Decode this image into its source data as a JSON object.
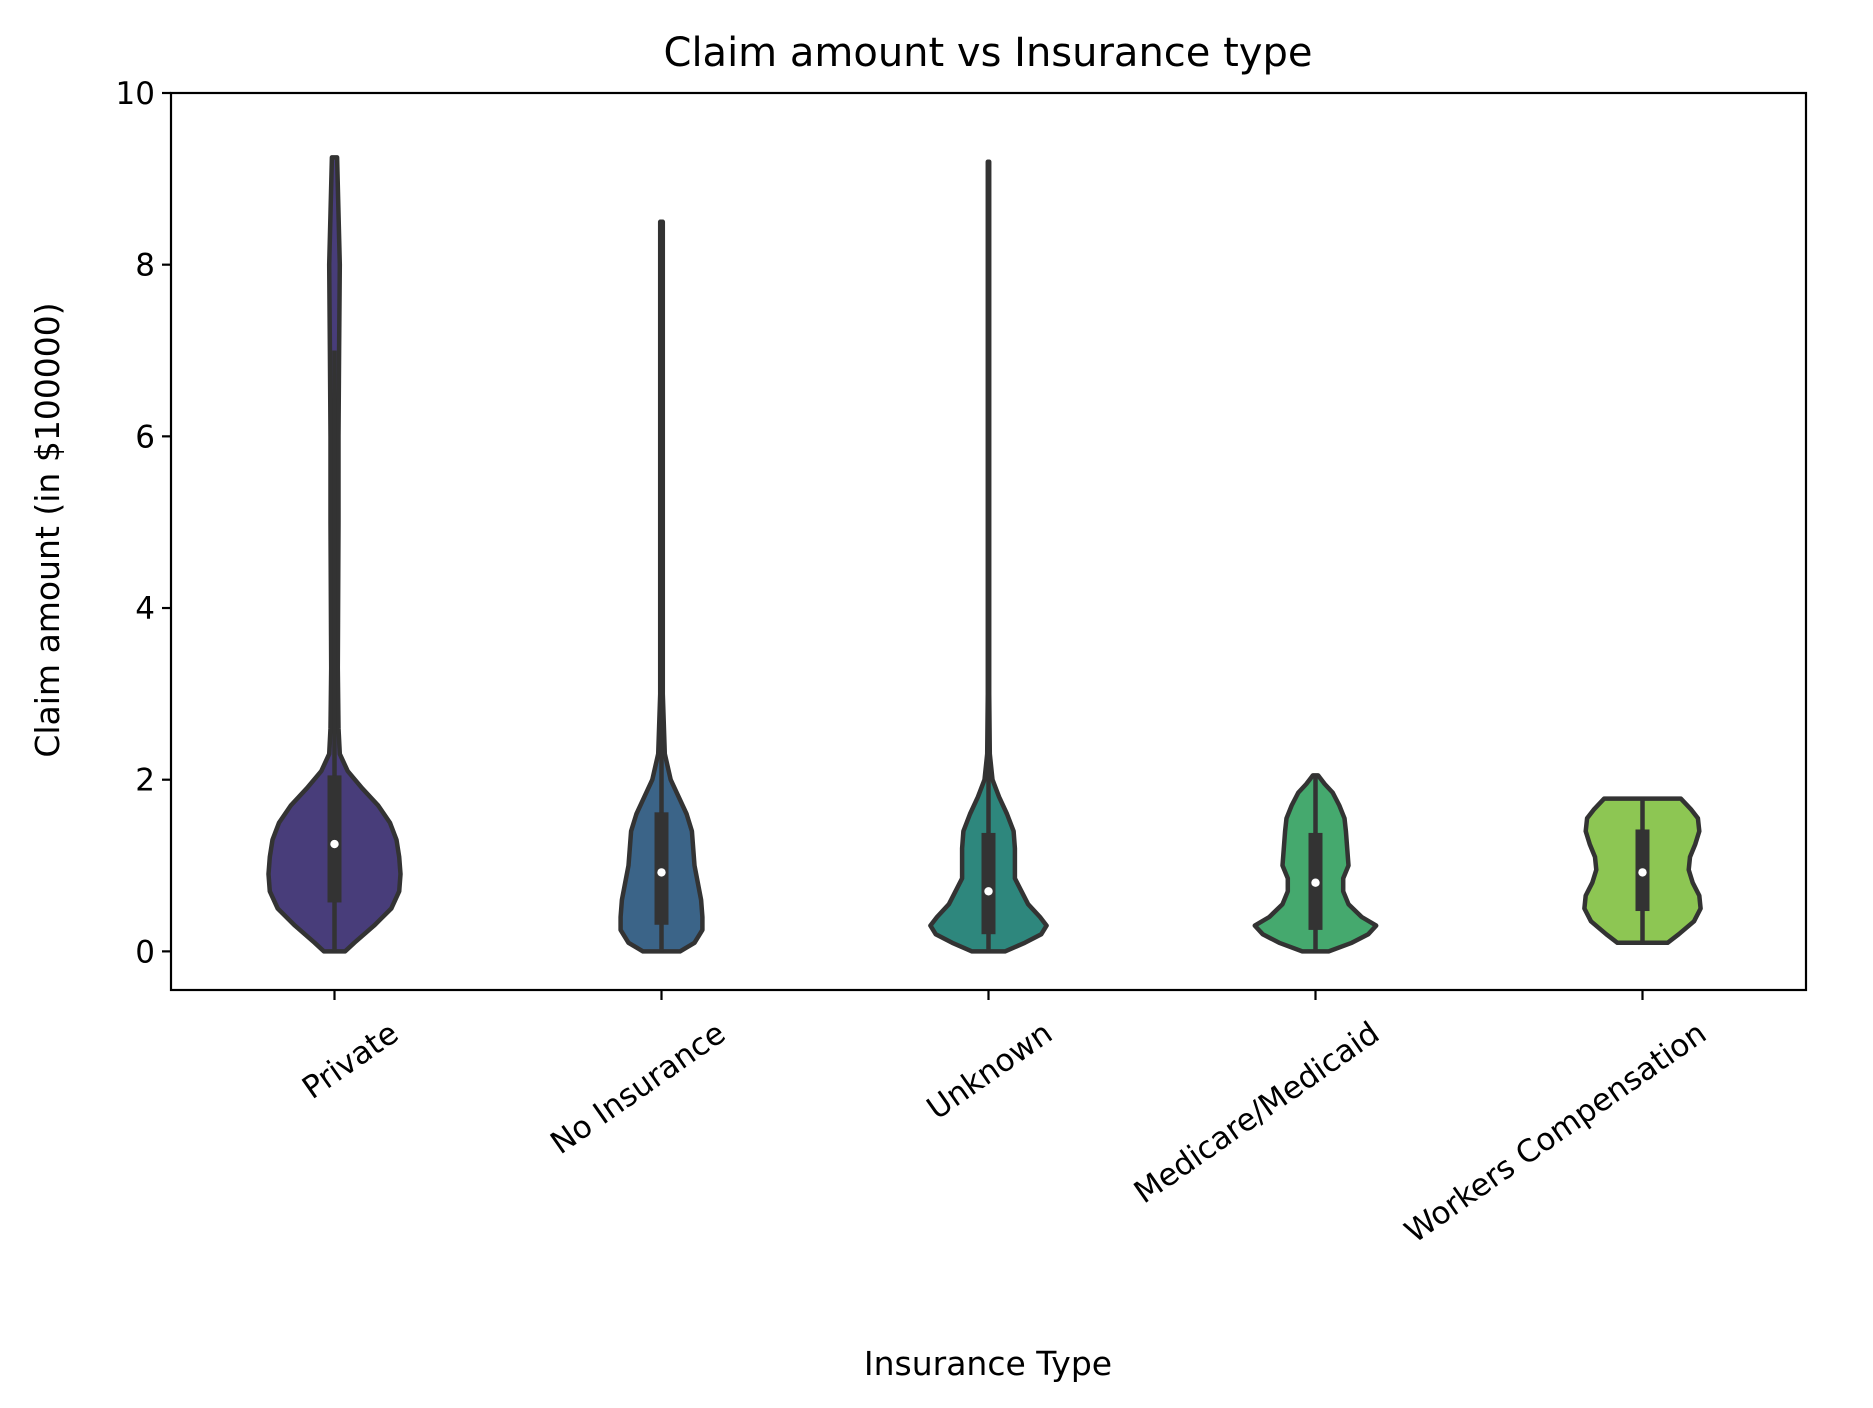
{
  "chart_data": {
    "type": "violin",
    "title": "Claim amount vs Insurance type",
    "xlabel": "Insurance Type",
    "ylabel": "Claim amount (in $100000)",
    "ylim": [
      -0.45,
      10
    ],
    "yticks": [
      0,
      2,
      4,
      6,
      8,
      10
    ],
    "grid": false,
    "categories": [
      "Private",
      "No Insurance",
      "Unknown",
      "Medicare/Medicaid",
      "Workers Compensation"
    ],
    "colors": [
      "#483d7a",
      "#3b6488",
      "#2e877d",
      "#45a96e",
      "#8dc653"
    ],
    "outline_color": "#333333",
    "violins": [
      {
        "name": "Private",
        "median": 1.25,
        "q1": 0.57,
        "q3": 2.05,
        "whisker_low": 0.0,
        "whisker_high": 7.0,
        "profile": [
          [
            0.0,
            0.16
          ],
          [
            0.1,
            0.3
          ],
          [
            0.3,
            0.6
          ],
          [
            0.5,
            0.86
          ],
          [
            0.7,
            0.98
          ],
          [
            0.9,
            1.0
          ],
          [
            1.1,
            0.98
          ],
          [
            1.3,
            0.94
          ],
          [
            1.5,
            0.84
          ],
          [
            1.7,
            0.66
          ],
          [
            1.9,
            0.42
          ],
          [
            2.1,
            0.2
          ],
          [
            2.3,
            0.08
          ],
          [
            2.6,
            0.06
          ],
          [
            3.3,
            0.05
          ],
          [
            5.0,
            0.06
          ],
          [
            6.0,
            0.06
          ],
          [
            7.0,
            0.07
          ],
          [
            8.0,
            0.08
          ],
          [
            8.6,
            0.06
          ],
          [
            9.25,
            0.04
          ]
        ]
      },
      {
        "name": "No Insurance",
        "median": 0.92,
        "q1": 0.31,
        "q3": 1.62,
        "whisker_low": 0.0,
        "whisker_high": 8.5,
        "profile": [
          [
            0.0,
            0.28
          ],
          [
            0.1,
            0.5
          ],
          [
            0.25,
            0.62
          ],
          [
            0.4,
            0.62
          ],
          [
            0.6,
            0.6
          ],
          [
            0.8,
            0.55
          ],
          [
            1.0,
            0.5
          ],
          [
            1.2,
            0.48
          ],
          [
            1.4,
            0.46
          ],
          [
            1.6,
            0.38
          ],
          [
            1.8,
            0.26
          ],
          [
            2.0,
            0.14
          ],
          [
            2.3,
            0.05
          ],
          [
            3.0,
            0.02
          ],
          [
            5.0,
            0.02
          ],
          [
            8.5,
            0.02
          ]
        ]
      },
      {
        "name": "Unknown",
        "median": 0.7,
        "q1": 0.2,
        "q3": 1.38,
        "whisker_low": 0.0,
        "whisker_high": 9.2,
        "profile": [
          [
            0.0,
            0.25
          ],
          [
            0.1,
            0.55
          ],
          [
            0.2,
            0.8
          ],
          [
            0.3,
            0.88
          ],
          [
            0.4,
            0.78
          ],
          [
            0.55,
            0.6
          ],
          [
            0.7,
            0.5
          ],
          [
            0.85,
            0.4
          ],
          [
            1.0,
            0.4
          ],
          [
            1.2,
            0.4
          ],
          [
            1.4,
            0.38
          ],
          [
            1.6,
            0.28
          ],
          [
            1.8,
            0.16
          ],
          [
            2.0,
            0.06
          ],
          [
            2.3,
            0.02
          ],
          [
            3.0,
            0.01
          ],
          [
            9.2,
            0.01
          ]
        ]
      },
      {
        "name": "Medicare/Medicaid",
        "median": 0.8,
        "q1": 0.25,
        "q3": 1.38,
        "whisker_low": 0.0,
        "whisker_high": 2.05,
        "profile": [
          [
            0.0,
            0.2
          ],
          [
            0.1,
            0.55
          ],
          [
            0.2,
            0.8
          ],
          [
            0.3,
            0.92
          ],
          [
            0.4,
            0.7
          ],
          [
            0.55,
            0.5
          ],
          [
            0.7,
            0.42
          ],
          [
            0.85,
            0.42
          ],
          [
            1.0,
            0.5
          ],
          [
            1.2,
            0.48
          ],
          [
            1.4,
            0.46
          ],
          [
            1.55,
            0.44
          ],
          [
            1.7,
            0.36
          ],
          [
            1.85,
            0.26
          ],
          [
            1.95,
            0.14
          ],
          [
            2.05,
            0.04
          ]
        ]
      },
      {
        "name": "Workers Compensation",
        "median": 0.92,
        "q1": 0.47,
        "q3": 1.42,
        "whisker_low": 0.1,
        "whisker_high": 1.78,
        "profile": [
          [
            0.1,
            0.38
          ],
          [
            0.2,
            0.55
          ],
          [
            0.35,
            0.78
          ],
          [
            0.5,
            0.88
          ],
          [
            0.65,
            0.86
          ],
          [
            0.8,
            0.76
          ],
          [
            0.95,
            0.7
          ],
          [
            1.1,
            0.72
          ],
          [
            1.25,
            0.8
          ],
          [
            1.4,
            0.86
          ],
          [
            1.55,
            0.84
          ],
          [
            1.65,
            0.74
          ],
          [
            1.78,
            0.58
          ]
        ]
      }
    ]
  }
}
